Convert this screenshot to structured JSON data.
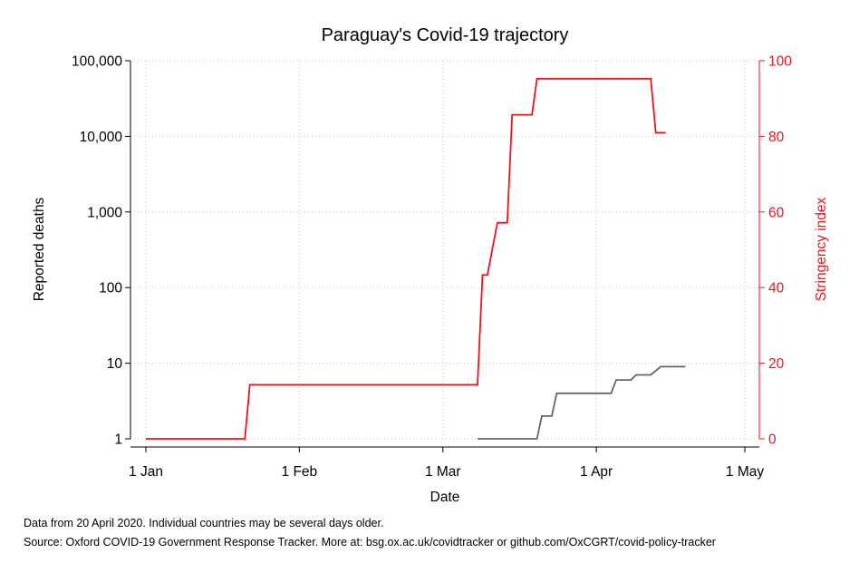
{
  "chart_data": {
    "type": "line",
    "title": "Paraguay's Covid-19 trajectory",
    "xlabel": "Date",
    "ylabel_left": "Reported deaths",
    "ylabel_right": "Stringency index",
    "y_left_scale": "log",
    "y_left_ticks": [
      {
        "value": 1,
        "label": "1"
      },
      {
        "value": 10,
        "label": "10"
      },
      {
        "value": 100,
        "label": "100"
      },
      {
        "value": 1000,
        "label": "1,000"
      },
      {
        "value": 10000,
        "label": "10,000"
      },
      {
        "value": 100000,
        "label": "100,000"
      }
    ],
    "y_right_ticks": [
      {
        "value": 0,
        "label": "0"
      },
      {
        "value": 20,
        "label": "20"
      },
      {
        "value": 40,
        "label": "40"
      },
      {
        "value": 60,
        "label": "60"
      },
      {
        "value": 80,
        "label": "80"
      },
      {
        "value": 100,
        "label": "100"
      }
    ],
    "x_ticks": [
      {
        "value": "2020-01-01",
        "label": "1 Jan"
      },
      {
        "value": "2020-02-01",
        "label": "1 Feb"
      },
      {
        "value": "2020-03-01",
        "label": "1 Mar"
      },
      {
        "value": "2020-04-01",
        "label": "1 Apr"
      },
      {
        "value": "2020-05-01",
        "label": "1 May"
      }
    ],
    "xlim": [
      "2020-01-01",
      "2020-05-01"
    ],
    "ylim_left": [
      1,
      100000
    ],
    "ylim_right": [
      0,
      100
    ],
    "grid": true,
    "series": [
      {
        "axis": "right",
        "color": "#e8161b",
        "points": [
          [
            "2020-01-01",
            0
          ],
          [
            "2020-01-21",
            0
          ],
          [
            "2020-01-22",
            14.29
          ],
          [
            "2020-03-08",
            14.29
          ],
          [
            "2020-03-09",
            43.33
          ],
          [
            "2020-03-10",
            43.33
          ],
          [
            "2020-03-12",
            57.14
          ],
          [
            "2020-03-14",
            57.14
          ],
          [
            "2020-03-15",
            85.71
          ],
          [
            "2020-03-19",
            85.71
          ],
          [
            "2020-03-20",
            95.24
          ],
          [
            "2020-04-12",
            95.24
          ],
          [
            "2020-04-13",
            80.95
          ],
          [
            "2020-04-15",
            80.95
          ]
        ]
      },
      {
        "axis": "left",
        "color": "#666666",
        "points": [
          [
            "2020-03-08",
            1
          ],
          [
            "2020-03-20",
            1
          ],
          [
            "2020-03-21",
            2
          ],
          [
            "2020-03-23",
            2
          ],
          [
            "2020-03-24",
            4
          ],
          [
            "2020-04-04",
            4
          ],
          [
            "2020-04-05",
            6
          ],
          [
            "2020-04-08",
            6
          ],
          [
            "2020-04-09",
            7
          ],
          [
            "2020-04-12",
            7
          ],
          [
            "2020-04-14",
            9
          ],
          [
            "2020-04-19",
            9
          ]
        ]
      }
    ]
  },
  "notes": {
    "line1": "Data from 20 April 2020. Individual countries may be several days older.",
    "line2": "Source: Oxford COVID-19 Government Response Tracker. More at: bsg.ox.ac.uk/covidtracker or github.com/OxCGRT/covid-policy-tracker"
  },
  "colors": {
    "axis_right": "#e8161b",
    "stringency": "#e8161b",
    "deaths": "#666666",
    "grid": "#c8c8c8"
  }
}
